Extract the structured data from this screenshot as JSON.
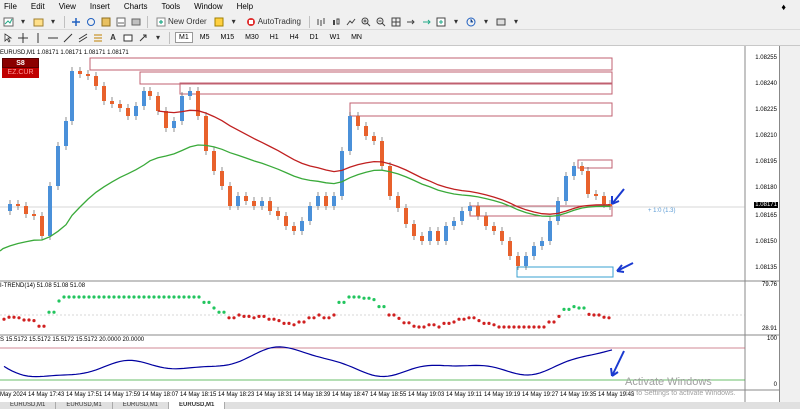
{
  "menu": [
    "File",
    "Edit",
    "View",
    "Insert",
    "Charts",
    "Tools",
    "Window",
    "Help"
  ],
  "menu_restore": "♦",
  "toolbar": {
    "new_order": "New Order",
    "autotrading": "AutoTrading"
  },
  "timeframes": [
    "M1",
    "M5",
    "M15",
    "M30",
    "H1",
    "H4",
    "D1",
    "W1",
    "MN"
  ],
  "chart": {
    "symbol_line": "EURUSD,M1  1.08171 1.08171 1.08171 1.08171",
    "sell_label": "S8",
    "sell_sub": "EZ.CUR",
    "current_price": "1.08171",
    "note": "+ 1:0 (1.3)",
    "price_labels": [
      "1.08255",
      "1.08240",
      "1.08225",
      "1.08210",
      "1.08195",
      "1.08180",
      "1.08165",
      "1.08150",
      "1.08135"
    ],
    "ind1_label": "I-TREND(14) 51.08 51.08 51.08",
    "ind1_levels": [
      "79.76",
      "28.91"
    ],
    "ind2_label": "S  15.5172 15.5172 15.5172 15.5172 20.0000 20.0000",
    "ind2_levels": [
      "100",
      "0"
    ],
    "time_labels": [
      "May 2024",
      "14 May 17:43",
      "14 May 17:51",
      "14 May 17:59",
      "14 May 18:07",
      "14 May 18:15",
      "14 May 18:23",
      "14 May 18:31",
      "14 May 18:39",
      "14 May 18:47",
      "14 May 18:55",
      "14 May 19:03",
      "14 May 19:11",
      "14 May 19:19",
      "14 May 19:27",
      "14 May 19:35",
      "14 May 19:43"
    ]
  },
  "watermark": {
    "title": "Activate Windows",
    "subtitle": "Go to Settings to activate Windows."
  },
  "tabs": [
    "EURUSD,M1",
    "EURUSD,M1",
    "EURUSD,M1",
    "EURUSD,M1"
  ],
  "colors": {
    "bull": "#4a90d9",
    "bear": "#e8612c",
    "ma_fast": "#c02020",
    "ma_slow": "#3aaa3a",
    "osc_line": "#0000a0",
    "osc_grey": "#a0a0a0",
    "dots_green": "#22c55e",
    "dots_red": "#d02020",
    "rect_red": "#c06070",
    "rect_blue": "#3aa0d0",
    "arrow": "#1a3ad0"
  }
}
